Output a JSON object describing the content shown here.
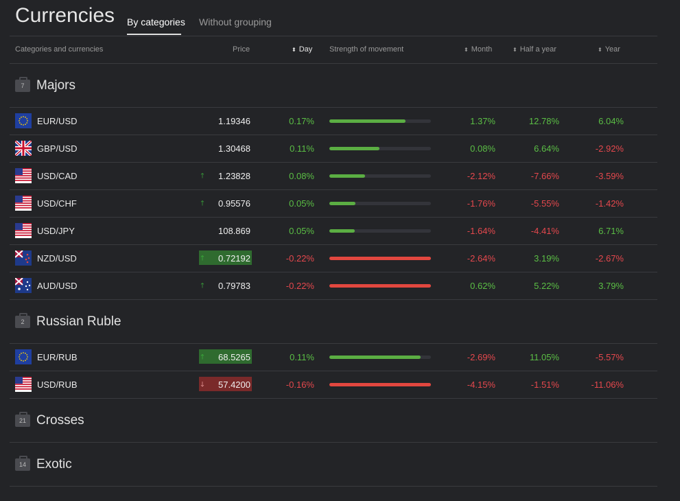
{
  "header": {
    "title": "Currencies",
    "tabs": [
      {
        "label": "By categories"
      },
      {
        "label": "Without grouping"
      }
    ]
  },
  "columns": {
    "name": "Categories and currencies",
    "price": "Price",
    "day": "Day",
    "strength": "Strength of movement",
    "month": "Month",
    "half_year": "Half a year",
    "year": "Year"
  },
  "groups": [
    {
      "name": "Majors",
      "count": "7",
      "rows": [
        {
          "pair": "EUR/USD",
          "price": "1.19346",
          "tick": "",
          "day": "0.17%",
          "strength": 0.75,
          "month": "1.37%",
          "half": "12.78%",
          "year": "6.04%",
          "flag": "eu"
        },
        {
          "pair": "GBP/USD",
          "price": "1.30468",
          "tick": "",
          "day": "0.11%",
          "strength": 0.49,
          "month": "0.08%",
          "half": "6.64%",
          "year": "-2.92%",
          "flag": "gb"
        },
        {
          "pair": "USD/CAD",
          "price": "1.23828",
          "tick": "up",
          "day": "0.08%",
          "strength": 0.35,
          "month": "-2.12%",
          "half": "-7.66%",
          "year": "-3.59%",
          "flag": "us"
        },
        {
          "pair": "USD/CHF",
          "price": "0.95576",
          "tick": "up",
          "day": "0.05%",
          "strength": 0.26,
          "month": "-1.76%",
          "half": "-5.55%",
          "year": "-1.42%",
          "flag": "us"
        },
        {
          "pair": "USD/JPY",
          "price": "108.869",
          "tick": "",
          "day": "0.05%",
          "strength": 0.25,
          "month": "-1.64%",
          "half": "-4.41%",
          "year": "6.71%",
          "flag": "us"
        },
        {
          "pair": "NZD/USD",
          "price": "0.72192",
          "tick": "up-box",
          "day": "-0.22%",
          "strength": 1.0,
          "month": "-2.64%",
          "half": "3.19%",
          "year": "-2.67%",
          "flag": "nz"
        },
        {
          "pair": "AUD/USD",
          "price": "0.79783",
          "tick": "up",
          "day": "-0.22%",
          "strength": 1.0,
          "month": "0.62%",
          "half": "5.22%",
          "year": "3.79%",
          "flag": "au"
        }
      ]
    },
    {
      "name": "Russian Ruble",
      "count": "2",
      "rows": [
        {
          "pair": "EUR/RUB",
          "price": "68.5265",
          "tick": "up-box",
          "day": "0.11%",
          "strength": 0.9,
          "month": "-2.69%",
          "half": "11.05%",
          "year": "-5.57%",
          "flag": "eu"
        },
        {
          "pair": "USD/RUB",
          "price": "57.4200",
          "tick": "down-box",
          "day": "-0.16%",
          "strength": 1.0,
          "month": "-4.15%",
          "half": "-1.51%",
          "year": "-11.06%",
          "flag": "us"
        }
      ]
    },
    {
      "name": "Crosses",
      "count": "21",
      "rows": []
    },
    {
      "name": "Exotic",
      "count": "14",
      "rows": []
    }
  ],
  "colors": {
    "positive": "#5bbf45",
    "negative": "#e5484d",
    "background": "#232427"
  }
}
